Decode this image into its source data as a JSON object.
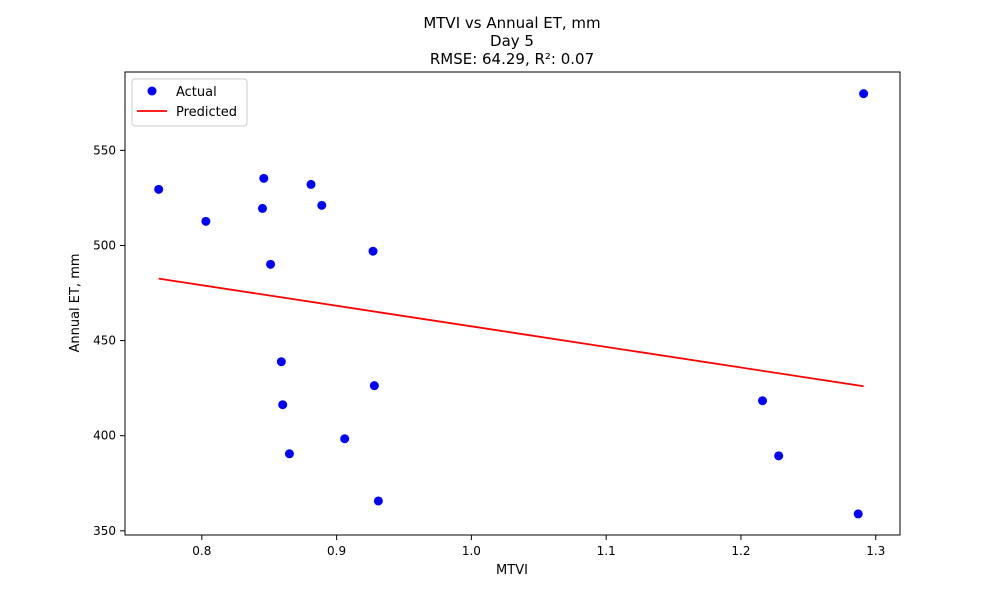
{
  "chart_data": {
    "type": "scatter",
    "title_lines": [
      "MTVI vs Annual ET, mm",
      "Day 5",
      "RMSE: 64.29, R²: 0.07"
    ],
    "xlabel": "MTVI",
    "ylabel": "Annual ET, mm",
    "xlim": [
      0.743,
      1.318
    ],
    "ylim": [
      347.8,
      591.2
    ],
    "xticks": [
      0.8,
      0.9,
      1.0,
      1.1,
      1.2,
      1.3
    ],
    "xtick_labels": [
      "0.8",
      "0.9",
      "1.0",
      "1.1",
      "1.2",
      "1.3"
    ],
    "yticks": [
      350,
      400,
      450,
      500,
      550
    ],
    "ytick_labels": [
      "350",
      "400",
      "450",
      "500",
      "550"
    ],
    "grid": false,
    "legend_position": "top-left",
    "series": [
      {
        "name": "Actual",
        "kind": "scatter",
        "color": "#0000ff",
        "points": [
          {
            "x": 0.768,
            "y": 529.5
          },
          {
            "x": 0.803,
            "y": 512.7
          },
          {
            "x": 0.846,
            "y": 535.3
          },
          {
            "x": 0.845,
            "y": 519.5
          },
          {
            "x": 0.851,
            "y": 490.1
          },
          {
            "x": 0.881,
            "y": 532.1
          },
          {
            "x": 0.889,
            "y": 521.1
          },
          {
            "x": 0.927,
            "y": 497.0
          },
          {
            "x": 0.859,
            "y": 438.9
          },
          {
            "x": 0.86,
            "y": 416.3
          },
          {
            "x": 0.865,
            "y": 390.5
          },
          {
            "x": 0.906,
            "y": 398.4
          },
          {
            "x": 0.928,
            "y": 426.3
          },
          {
            "x": 0.931,
            "y": 365.7
          },
          {
            "x": 1.216,
            "y": 418.4
          },
          {
            "x": 1.228,
            "y": 389.4
          },
          {
            "x": 1.287,
            "y": 358.9
          },
          {
            "x": 1.291,
            "y": 579.8
          }
        ]
      },
      {
        "name": "Predicted",
        "kind": "line",
        "color": "#ff0000",
        "points": [
          {
            "x": 0.768,
            "y": 482.6
          },
          {
            "x": 1.291,
            "y": 426.0
          }
        ]
      }
    ]
  }
}
